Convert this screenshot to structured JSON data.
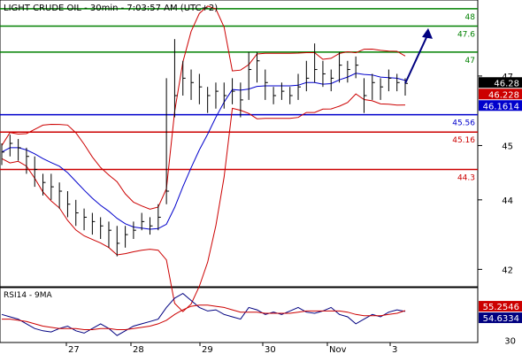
{
  "chart_data": [
    {
      "type": "line",
      "title": "LIGHT CRUDE OIL - 30min - 7:03:57 AM (UTC+2)",
      "xlabel": "",
      "ylabel": "",
      "ylim": [
        41.6,
        48.2
      ],
      "grid": false,
      "x_tick_labels": [
        "27",
        "28",
        "29",
        "30",
        "Nov",
        "3"
      ],
      "y_tick_labels": [
        "42",
        "44",
        "45",
        "47"
      ],
      "price_series": {
        "type": "candlestick",
        "close": [
          44.7,
          44.9,
          44.8,
          44.6,
          44.3,
          44.0,
          43.9,
          43.8,
          43.5,
          43.3,
          43.2,
          43.1,
          43.0,
          42.9,
          42.6,
          42.8,
          42.9,
          43.1,
          43.0,
          43.2,
          43.8,
          46.0,
          46.4,
          46.3,
          46.2,
          46.0,
          46.1,
          46.0,
          46.1,
          45.9,
          46.6,
          46.8,
          46.3,
          46.0,
          46.1,
          46.0,
          46.2,
          46.4,
          46.6,
          46.5,
          46.4,
          46.7,
          46.6,
          46.7,
          46.0,
          46.3,
          46.2,
          46.4,
          46.3,
          46.28
        ],
        "high": [
          44.9,
          45.1,
          45.0,
          44.8,
          44.6,
          44.2,
          44.2,
          44.0,
          43.8,
          43.6,
          43.4,
          43.3,
          43.2,
          43.1,
          43.0,
          43.0,
          43.1,
          43.3,
          43.2,
          43.5,
          46.4,
          47.3,
          46.8,
          46.6,
          46.5,
          46.2,
          46.3,
          46.3,
          46.4,
          46.3,
          47.0,
          47.0,
          46.6,
          46.2,
          46.3,
          46.2,
          46.5,
          46.8,
          47.2,
          46.8,
          46.6,
          47.0,
          46.8,
          46.9,
          46.4,
          46.5,
          46.4,
          46.6,
          46.5,
          46.4
        ],
        "low": [
          44.4,
          44.6,
          44.5,
          44.2,
          43.9,
          43.7,
          43.6,
          43.4,
          43.2,
          43.0,
          42.9,
          42.8,
          42.7,
          42.5,
          42.3,
          42.5,
          42.7,
          42.9,
          42.8,
          42.9,
          43.5,
          45.5,
          46.0,
          45.9,
          45.8,
          45.6,
          45.7,
          45.7,
          45.8,
          45.5,
          45.9,
          46.3,
          45.9,
          45.8,
          45.9,
          45.8,
          45.9,
          46.1,
          46.3,
          46.2,
          46.1,
          46.3,
          46.3,
          46.4,
          45.6,
          45.9,
          45.9,
          46.1,
          46.1,
          46.0
        ]
      },
      "horizontal_levels": [
        {
          "label": "48",
          "value": 48.0,
          "color": "#008000"
        },
        {
          "label": "47.6",
          "value": 47.6,
          "color": "#008000"
        },
        {
          "label": "47",
          "value": 47.0,
          "color": "#008000"
        },
        {
          "label": "45.56",
          "value": 45.56,
          "color": "#0000cc"
        },
        {
          "label": "45.16",
          "value": 45.16,
          "color": "#cc0000"
        },
        {
          "label": "44.3",
          "value": 44.3,
          "color": "#cc0000"
        }
      ],
      "price_badges": [
        {
          "label": "46.28",
          "value": 46.28,
          "color": "#000000"
        },
        {
          "label": "46.228",
          "value": 46.228,
          "color": "#cc0000"
        },
        {
          "label": "46.1614",
          "value": 46.1614,
          "color": "#0000cc"
        }
      ],
      "forecast_arrow": {
        "color": "#000080",
        "from_value": 46.28,
        "to_value": 47.55
      },
      "colors": {
        "bollinger": "#cc0000",
        "moving_average": "#0000cc",
        "price": "#000000"
      }
    },
    {
      "type": "line",
      "title": "RSI14 - 9MA",
      "xlabel": "",
      "ylabel": "",
      "ylim": [
        28,
        75
      ],
      "y_tick_labels": [
        "30"
      ],
      "series": [
        {
          "name": "RSI14",
          "color": "#000080",
          "values": [
            52,
            50,
            48,
            44,
            40,
            38,
            37,
            40,
            42,
            38,
            36,
            40,
            44,
            40,
            34,
            38,
            42,
            44,
            46,
            48,
            58,
            66,
            70,
            64,
            58,
            55,
            56,
            52,
            50,
            48,
            58,
            56,
            52,
            54,
            52,
            55,
            58,
            54,
            53,
            55,
            58,
            52,
            50,
            44,
            48,
            52,
            50,
            54,
            56,
            54.6334
          ]
        },
        {
          "name": "9MA",
          "color": "#cc0000",
          "values": [
            48,
            48,
            47,
            46,
            44,
            42,
            41,
            40,
            40,
            40,
            39,
            39,
            40,
            40,
            39,
            39,
            40,
            41,
            42,
            44,
            47,
            52,
            56,
            59,
            60,
            60,
            59,
            58,
            56,
            54,
            54,
            54,
            53,
            53,
            53,
            53,
            54,
            55,
            55,
            55,
            55,
            55,
            54,
            52,
            51,
            51,
            51,
            52,
            53,
            55.2546
          ]
        }
      ],
      "value_badges": [
        {
          "label": "55.2546",
          "value": 55.2546,
          "color": "#cc0000"
        },
        {
          "label": "54.6334",
          "value": 54.6334,
          "color": "#000080"
        }
      ]
    }
  ]
}
